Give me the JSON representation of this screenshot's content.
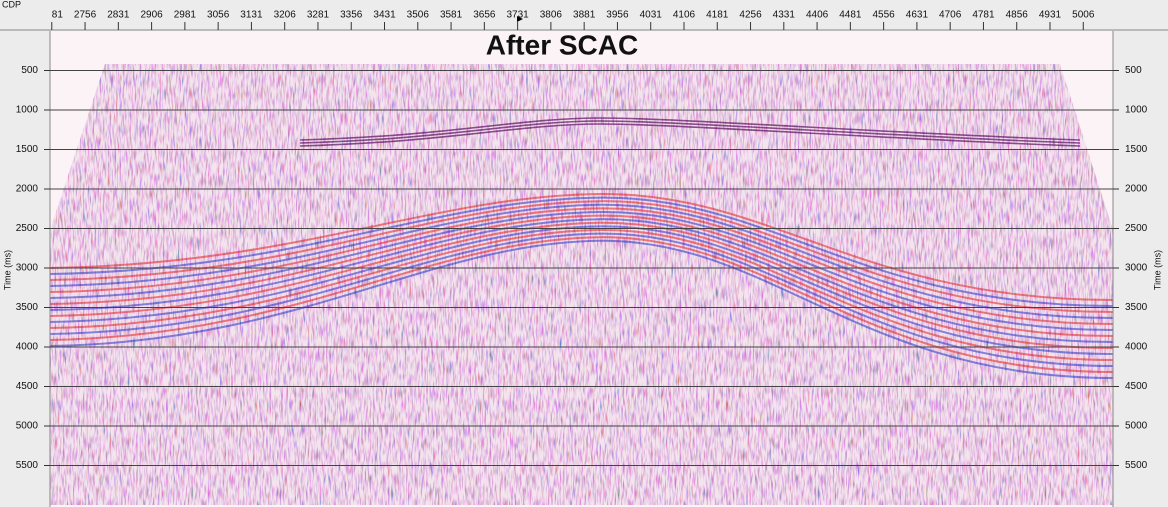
{
  "chart_data": {
    "type": "seismic-section",
    "title": "After SCAC",
    "x_label": "CDP",
    "y_label": "Time (ms)",
    "xlim": [
      2677,
      5073
    ],
    "xticks": [
      {
        "value": 2681,
        "label": "81"
      },
      2756,
      2831,
      2906,
      2981,
      3056,
      3131,
      3206,
      3281,
      3356,
      3431,
      3506,
      3581,
      3656,
      3731,
      3806,
      3881,
      3956,
      4031,
      4106,
      4181,
      4256,
      4331,
      4406,
      4481,
      4556,
      4631,
      4706,
      4781,
      4856,
      4931,
      5006
    ],
    "ylim": [
      0,
      6000
    ],
    "yticks": [
      500,
      1000,
      1500,
      2000,
      2500,
      3000,
      3500,
      4000,
      4500,
      5000,
      5500
    ],
    "grid": true
  }
}
